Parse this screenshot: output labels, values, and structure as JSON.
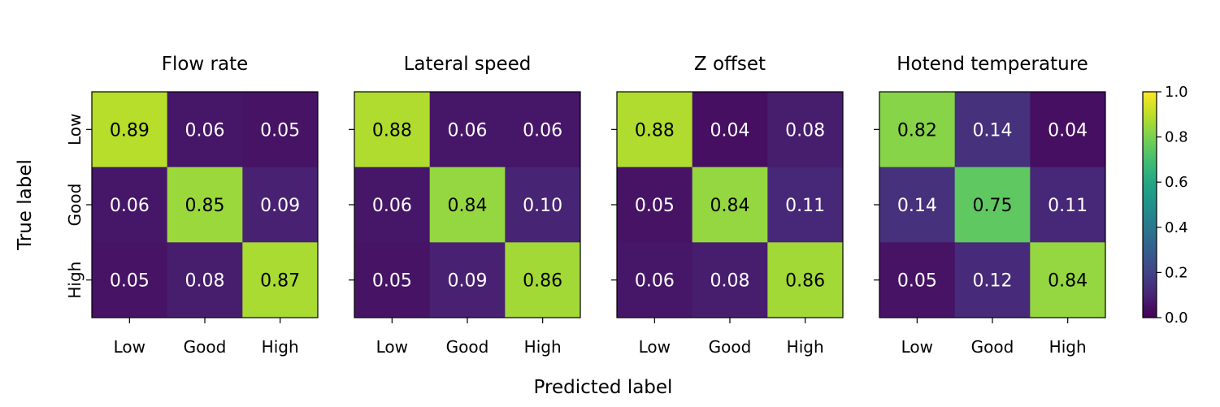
{
  "chart_data": {
    "type": "heatmap",
    "xlabel": "Predicted label",
    "ylabel": "True label",
    "labels": [
      "Low",
      "Good",
      "High"
    ],
    "colormap": "viridis",
    "vmin": 0.0,
    "vmax": 1.0,
    "colorbar_ticks": [
      "0.0",
      "0.2",
      "0.4",
      "0.6",
      "0.8",
      "1.0"
    ],
    "panels": [
      {
        "title": "Flow rate",
        "matrix": [
          [
            0.89,
            0.06,
            0.05
          ],
          [
            0.06,
            0.85,
            0.09
          ],
          [
            0.05,
            0.08,
            0.87
          ]
        ],
        "cell_labels": [
          [
            "0.89",
            "0.06",
            "0.05"
          ],
          [
            "0.06",
            "0.85",
            "0.09"
          ],
          [
            "0.05",
            "0.08",
            "0.87"
          ]
        ]
      },
      {
        "title": "Lateral speed",
        "matrix": [
          [
            0.88,
            0.06,
            0.06
          ],
          [
            0.06,
            0.84,
            0.1
          ],
          [
            0.05,
            0.09,
            0.86
          ]
        ],
        "cell_labels": [
          [
            "0.88",
            "0.06",
            "0.06"
          ],
          [
            "0.06",
            "0.84",
            "0.10"
          ],
          [
            "0.05",
            "0.09",
            "0.86"
          ]
        ]
      },
      {
        "title": "Z offset",
        "matrix": [
          [
            0.88,
            0.04,
            0.08
          ],
          [
            0.05,
            0.84,
            0.11
          ],
          [
            0.06,
            0.08,
            0.86
          ]
        ],
        "cell_labels": [
          [
            "0.88",
            "0.04",
            "0.08"
          ],
          [
            "0.05",
            "0.84",
            "0.11"
          ],
          [
            "0.06",
            "0.08",
            "0.86"
          ]
        ]
      },
      {
        "title": "Hotend temperature",
        "matrix": [
          [
            0.82,
            0.14,
            0.04
          ],
          [
            0.14,
            0.75,
            0.11
          ],
          [
            0.05,
            0.12,
            0.84
          ]
        ],
        "cell_labels": [
          [
            "0.82",
            "0.14",
            "0.04"
          ],
          [
            "0.14",
            "0.75",
            "0.11"
          ],
          [
            "0.05",
            "0.12",
            "0.84"
          ]
        ]
      }
    ]
  }
}
